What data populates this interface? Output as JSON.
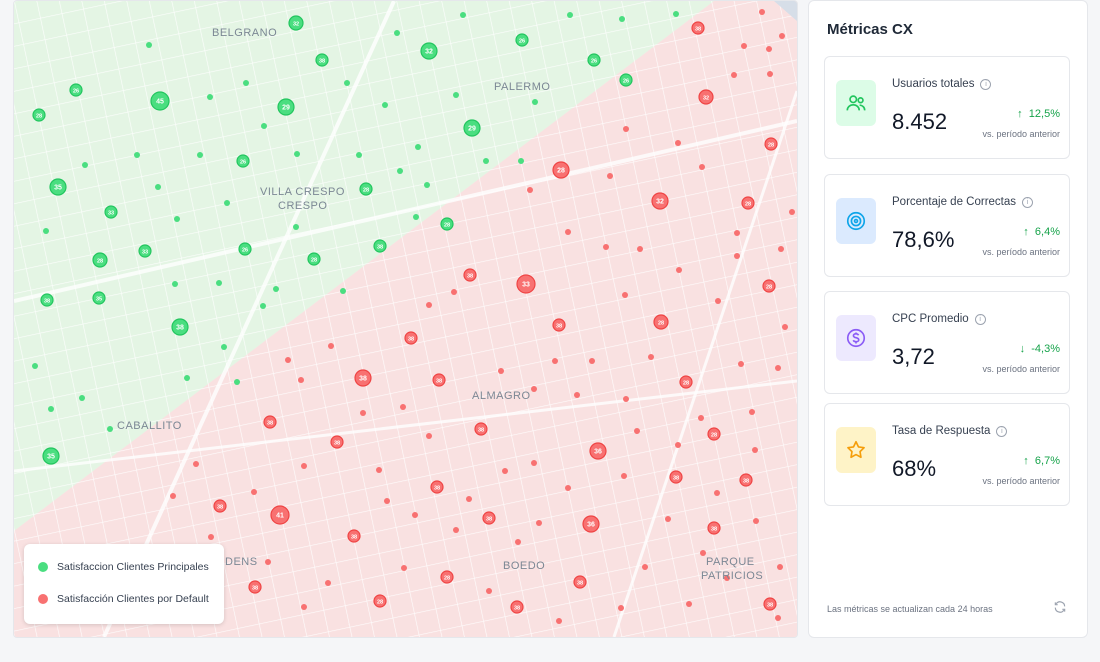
{
  "map": {
    "neighborhoods": [
      {
        "id": "belgrano",
        "label": "BELGRANO"
      },
      {
        "id": "palermo",
        "label": "PALERMO"
      },
      {
        "id": "villa-crespo",
        "label": "VILLA CRESPO"
      },
      {
        "id": "crespo",
        "label": "CRESPO"
      },
      {
        "id": "caballito",
        "label": "CABALLITO"
      },
      {
        "id": "almagro",
        "label": "ALMAGRO"
      },
      {
        "id": "boedo",
        "label": "BOEDO"
      },
      {
        "id": "parque",
        "label": "PARQUE"
      },
      {
        "id": "patricios",
        "label": "PATRICIOS"
      },
      {
        "id": "dens",
        "label": "DENS"
      }
    ],
    "green_color": "#4ade80",
    "red_color": "#f87171",
    "green_markers": [
      {
        "label": "32"
      },
      {
        "label": "32"
      },
      {
        "label": "26"
      },
      {
        "label": "45"
      },
      {
        "label": "29"
      },
      {
        "label": "29"
      },
      {
        "label": "26"
      },
      {
        "label": "38"
      },
      {
        "label": "35"
      },
      {
        "label": "28"
      },
      {
        "label": "26"
      },
      {
        "label": "33"
      },
      {
        "label": "38"
      },
      {
        "label": "33"
      },
      {
        "label": "28"
      },
      {
        "label": "35"
      },
      {
        "label": "28"
      },
      {
        "label": "26"
      },
      {
        "label": "28"
      },
      {
        "label": "38"
      },
      {
        "label": "26"
      },
      {
        "label": "26"
      },
      {
        "label": "28"
      },
      {
        "label": "38"
      },
      {
        "label": "35"
      }
    ],
    "red_markers": [
      {
        "label": "32"
      },
      {
        "label": "28"
      },
      {
        "label": "32"
      },
      {
        "label": "33"
      },
      {
        "label": "28"
      },
      {
        "label": "38"
      },
      {
        "label": "41"
      },
      {
        "label": "36"
      },
      {
        "label": "36"
      },
      {
        "label": "38"
      },
      {
        "label": "28"
      },
      {
        "label": "28"
      },
      {
        "label": "28"
      },
      {
        "label": "28"
      },
      {
        "label": "38"
      },
      {
        "label": "38"
      },
      {
        "label": "38"
      },
      {
        "label": "38"
      },
      {
        "label": "38"
      },
      {
        "label": "38"
      },
      {
        "label": "38"
      },
      {
        "label": "38"
      },
      {
        "label": "38"
      },
      {
        "label": "38"
      },
      {
        "label": "38"
      },
      {
        "label": "38"
      },
      {
        "label": "38"
      },
      {
        "label": "38"
      },
      {
        "label": "28"
      },
      {
        "label": "28"
      },
      {
        "label": "38"
      },
      {
        "label": "38"
      },
      {
        "label": "38"
      },
      {
        "label": "28"
      },
      {
        "label": "38"
      }
    ]
  },
  "legend": {
    "items": [
      {
        "label": "Satisfaccion Clientes Principales",
        "color": "#4ade80"
      },
      {
        "label": "Satisfacción Clientes por Default",
        "color": "#f87171"
      }
    ]
  },
  "panel": {
    "title": "Métricas CX",
    "cards": [
      {
        "label": "Usuarios totales",
        "value": "8.452",
        "change": "12,5%",
        "direction": "up",
        "trend_color": "#16a34a",
        "sub": "vs. período anterior",
        "icon": "users-icon",
        "icon_bg": "#dcfce7",
        "icon_color": "#22c55e"
      },
      {
        "label": "Porcentaje de Correctas",
        "value": "78,6%",
        "change": "6,4%",
        "direction": "up",
        "trend_color": "#16a34a",
        "sub": "vs. período anterior",
        "icon": "target-icon",
        "icon_bg": "#dbeafe",
        "icon_color": "#0ea5e9"
      },
      {
        "label": "CPC Promedio",
        "value": "3,72",
        "change": "-4,3%",
        "direction": "down",
        "trend_color": "#16a34a",
        "sub": "vs. período anterior",
        "icon": "dollar-icon",
        "icon_bg": "#ede9fe",
        "icon_color": "#8b5cf6"
      },
      {
        "label": "Tasa de Respuesta",
        "value": "68%",
        "change": "6,7%",
        "direction": "up",
        "trend_color": "#16a34a",
        "sub": "vs. período anterior",
        "icon": "star-icon",
        "icon_bg": "#fef3c7",
        "icon_color": "#f59e0b"
      }
    ],
    "footer": "Las métricas se actualizan cada 24 horas",
    "refresh_icon": "refresh-icon"
  }
}
